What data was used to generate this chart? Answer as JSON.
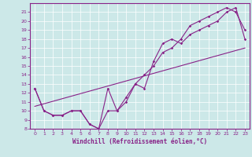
{
  "xlabel": "Windchill (Refroidissement éolien,°C)",
  "bg_color": "#cce8e8",
  "line_color": "#882288",
  "xlim": [
    -0.5,
    23.5
  ],
  "ylim": [
    8,
    22
  ],
  "xticks": [
    0,
    1,
    2,
    3,
    4,
    5,
    6,
    7,
    8,
    9,
    10,
    11,
    12,
    13,
    14,
    15,
    16,
    17,
    18,
    19,
    20,
    21,
    22,
    23
  ],
  "yticks": [
    8,
    9,
    10,
    11,
    12,
    13,
    14,
    15,
    16,
    17,
    18,
    19,
    20,
    21
  ],
  "curve1_x": [
    0,
    1,
    2,
    3,
    4,
    5,
    6,
    7,
    8,
    9,
    10,
    11,
    12,
    13,
    14,
    15,
    16,
    17,
    18,
    19,
    20,
    21,
    22,
    23
  ],
  "curve1_y": [
    12.5,
    10.0,
    9.5,
    9.5,
    10.0,
    10.0,
    8.5,
    8.0,
    12.5,
    10.0,
    11.0,
    13.0,
    12.5,
    15.5,
    17.5,
    18.0,
    17.5,
    18.5,
    19.0,
    19.5,
    20.0,
    21.0,
    21.5,
    18.0
  ],
  "curve2_x": [
    0,
    1,
    2,
    3,
    4,
    5,
    6,
    7,
    8,
    9,
    10,
    11,
    12,
    13,
    14,
    15,
    16,
    17,
    18,
    19,
    20,
    21,
    22,
    23
  ],
  "curve2_y": [
    12.5,
    10.0,
    9.5,
    9.5,
    10.0,
    10.0,
    8.5,
    8.0,
    10.0,
    10.0,
    11.5,
    13.0,
    14.0,
    15.0,
    16.5,
    17.0,
    18.0,
    19.5,
    20.0,
    20.5,
    21.0,
    21.5,
    21.0,
    19.0
  ],
  "curve3_x": [
    0,
    23
  ],
  "curve3_y": [
    10.5,
    17.0
  ]
}
